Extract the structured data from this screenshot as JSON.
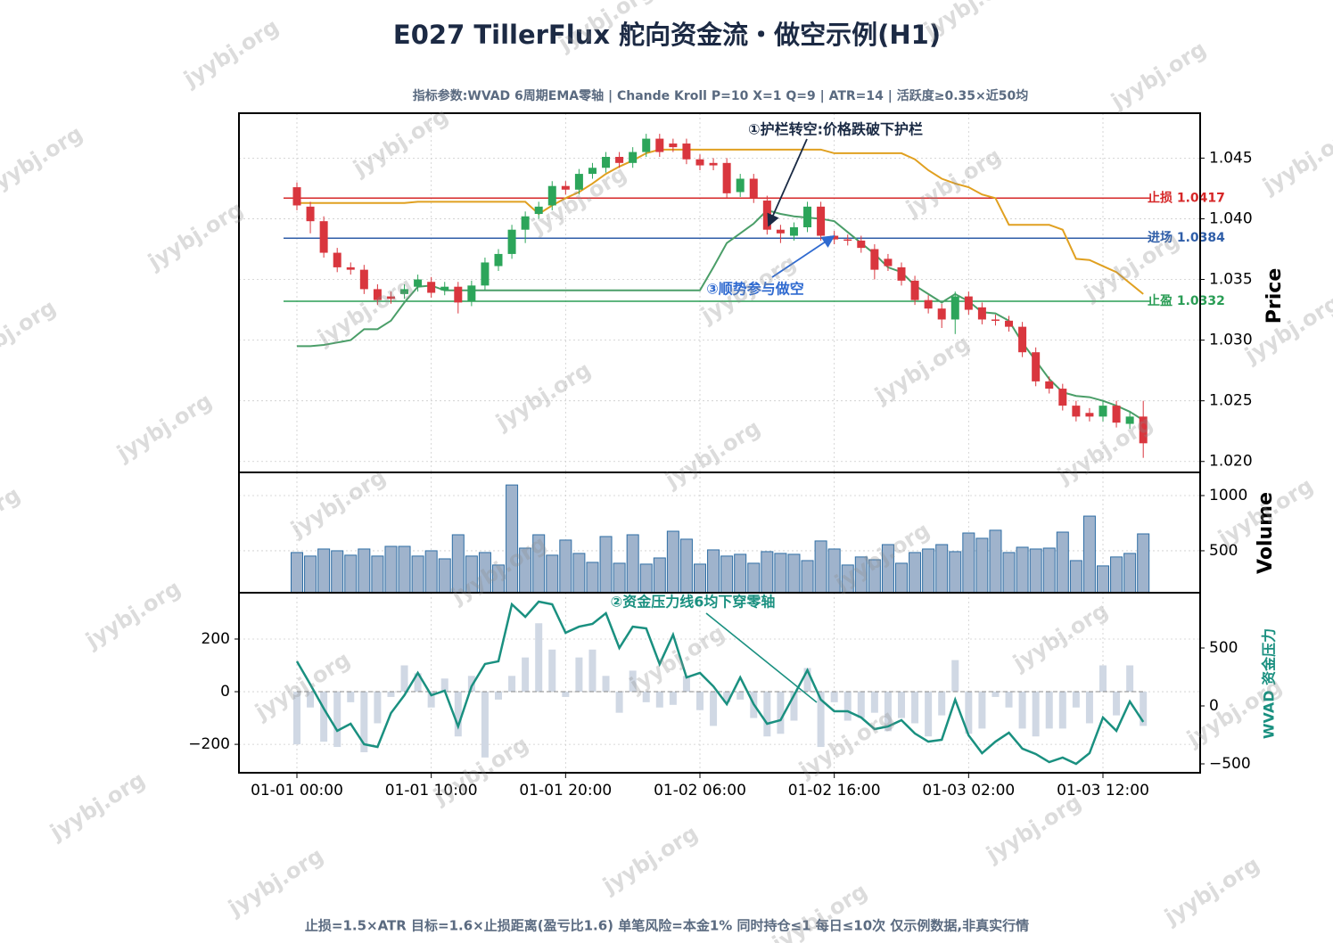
{
  "title": "E027 TillerFlux 舵向资金流・做空示例(H1)",
  "subtitle": "指标参数:WVAD 6周期EMA零轴 | Chande Kroll P=10 X=1 Q=9 | ATR=14 | 活跃度≥0.35×近50均",
  "footer": "止损=1.5×ATR  目标=1.6×止损距离(盈亏比1.6)  单笔风险=本金1%  同时持仓≤1  每日≤10次     仅示例数据,非真实行情",
  "watermark": "jyybj.org",
  "x": [
    "01-01 00:00",
    "01-01 01:00",
    "01-01 02:00",
    "01-01 03:00",
    "01-01 04:00",
    "01-01 05:00",
    "01-01 06:00",
    "01-01 07:00",
    "01-01 08:00",
    "01-01 09:00",
    "01-01 10:00",
    "01-01 11:00",
    "01-01 12:00",
    "01-01 13:00",
    "01-01 14:00",
    "01-01 15:00",
    "01-01 16:00",
    "01-01 17:00",
    "01-01 18:00",
    "01-01 19:00",
    "01-01 20:00",
    "01-01 21:00",
    "01-01 22:00",
    "01-01 23:00",
    "01-02 00:00",
    "01-02 01:00",
    "01-02 02:00",
    "01-02 03:00",
    "01-02 04:00",
    "01-02 05:00",
    "01-02 06:00",
    "01-02 07:00",
    "01-02 08:00",
    "01-02 09:00",
    "01-02 10:00",
    "01-02 11:00",
    "01-02 12:00",
    "01-02 13:00",
    "01-02 14:00",
    "01-02 15:00",
    "01-02 16:00",
    "01-02 17:00",
    "01-02 18:00",
    "01-02 19:00",
    "01-02 20:00",
    "01-02 21:00",
    "01-02 22:00",
    "01-02 23:00",
    "01-03 00:00",
    "01-03 01:00",
    "01-03 02:00",
    "01-03 03:00",
    "01-03 04:00",
    "01-03 05:00",
    "01-03 06:00",
    "01-03 07:00",
    "01-03 08:00",
    "01-03 09:00",
    "01-03 10:00",
    "01-03 11:00",
    "01-03 12:00",
    "01-03 13:00",
    "01-03 14:00",
    "01-03 15:00"
  ],
  "xticks": [
    "01-01 00:00",
    "01-01 10:00",
    "01-01 20:00",
    "01-02 06:00",
    "01-02 16:00",
    "01-03 02:00",
    "01-03 12:00"
  ],
  "grid": true,
  "chart_data": [
    {
      "type": "candlestick",
      "y_label": "Price",
      "up_color": "#2ca55a",
      "down_color": "#d9363e",
      "open": [
        1.0426,
        1.041,
        1.0398,
        1.0372,
        1.036,
        1.0358,
        1.0342,
        1.0336,
        1.0338,
        1.0344,
        1.0348,
        1.0341,
        1.0344,
        1.0332,
        1.0345,
        1.0361,
        1.0371,
        1.0391,
        1.0404,
        1.0411,
        1.0427,
        1.0424,
        1.0437,
        1.0442,
        1.0451,
        1.0446,
        1.0455,
        1.0466,
        1.0462,
        1.0462,
        1.0449,
        1.0446,
        1.0446,
        1.0422,
        1.0433,
        1.0415,
        1.0391,
        1.0386,
        1.0393,
        1.041,
        1.0386,
        1.0383,
        1.0382,
        1.0375,
        1.0367,
        1.036,
        1.0349,
        1.0333,
        1.0326,
        1.0317,
        1.0336,
        1.0327,
        1.0317,
        1.0316,
        1.0311,
        1.029,
        1.0266,
        1.026,
        1.0246,
        1.024,
        1.0237,
        1.0246,
        1.0231,
        1.0237
      ],
      "high": [
        1.043,
        1.0414,
        1.0402,
        1.0376,
        1.0364,
        1.0362,
        1.0346,
        1.034,
        1.0346,
        1.0354,
        1.0352,
        1.0348,
        1.0348,
        1.0349,
        1.0368,
        1.0375,
        1.0395,
        1.0406,
        1.0414,
        1.0431,
        1.0431,
        1.0441,
        1.0446,
        1.0455,
        1.0455,
        1.0459,
        1.047,
        1.047,
        1.0466,
        1.0466,
        1.0453,
        1.045,
        1.045,
        1.0437,
        1.0437,
        1.0419,
        1.0395,
        1.0397,
        1.0414,
        1.0414,
        1.039,
        1.0387,
        1.0386,
        1.0379,
        1.0371,
        1.0364,
        1.0353,
        1.0337,
        1.033,
        1.034,
        1.034,
        1.0331,
        1.0321,
        1.032,
        1.0315,
        1.0294,
        1.027,
        1.0264,
        1.025,
        1.0244,
        1.025,
        1.025,
        1.0241,
        1.025
      ],
      "low": [
        1.0407,
        1.0388,
        1.0368,
        1.0356,
        1.0354,
        1.0338,
        1.0329,
        1.033,
        1.0334,
        1.034,
        1.0335,
        1.0337,
        1.0322,
        1.0328,
        1.0341,
        1.0357,
        1.0367,
        1.038,
        1.04,
        1.0407,
        1.042,
        1.042,
        1.0433,
        1.0438,
        1.0442,
        1.0442,
        1.0451,
        1.0451,
        1.0455,
        1.0445,
        1.044,
        1.044,
        1.0417,
        1.0418,
        1.0413,
        1.0387,
        1.038,
        1.0382,
        1.0389,
        1.0382,
        1.0379,
        1.0378,
        1.0372,
        1.035,
        1.0357,
        1.0345,
        1.0329,
        1.0322,
        1.031,
        1.0305,
        1.0321,
        1.0313,
        1.0312,
        1.0307,
        1.0286,
        1.0262,
        1.0256,
        1.0242,
        1.0233,
        1.0233,
        1.0233,
        1.0228,
        1.0227,
        1.0203
      ],
      "close": [
        1.0411,
        1.0398,
        1.0372,
        1.036,
        1.0358,
        1.0342,
        1.0333,
        1.0334,
        1.0342,
        1.035,
        1.0339,
        1.0344,
        1.0331,
        1.0345,
        1.0364,
        1.0371,
        1.0391,
        1.0402,
        1.041,
        1.0427,
        1.0424,
        1.0437,
        1.0442,
        1.0451,
        1.0446,
        1.0455,
        1.0466,
        1.0455,
        1.0459,
        1.0449,
        1.0444,
        1.0444,
        1.0421,
        1.0433,
        1.0417,
        1.0391,
        1.0388,
        1.0393,
        1.041,
        1.0386,
        1.0383,
        1.0382,
        1.0376,
        1.0358,
        1.0361,
        1.0349,
        1.0333,
        1.0326,
        1.0317,
        1.0336,
        1.0325,
        1.0317,
        1.0316,
        1.0311,
        1.029,
        1.0266,
        1.026,
        1.0246,
        1.0237,
        1.0237,
        1.0246,
        1.0232,
        1.0237,
        1.0215
      ],
      "lines": [
        {
          "color": "#e0a020",
          "values": [
            1.0413,
            1.0413,
            1.0413,
            1.0413,
            1.0413,
            1.0413,
            1.0413,
            1.0413,
            1.0413,
            1.0414,
            1.0414,
            1.0414,
            1.0414,
            1.0414,
            1.0414,
            1.0414,
            1.0414,
            1.0414,
            1.0404,
            1.0411,
            1.0417,
            1.0422,
            1.0429,
            1.0437,
            1.0443,
            1.0448,
            1.0454,
            1.0457,
            1.0457,
            1.0457,
            1.0457,
            1.0457,
            1.0457,
            1.0457,
            1.0457,
            1.0457,
            1.0457,
            1.0457,
            1.0457,
            1.0457,
            1.0454,
            1.0454,
            1.0454,
            1.0454,
            1.0454,
            1.0454,
            1.0449,
            1.044,
            1.0433,
            1.0429,
            1.0426,
            1.042,
            1.0417,
            1.0395,
            1.0395,
            1.0395,
            1.0395,
            1.0391,
            1.0367,
            1.0366,
            1.0361,
            1.0356,
            1.0347,
            1.0338
          ]
        },
        {
          "color": "#4a9e68",
          "values": [
            1.0295,
            1.0295,
            1.0296,
            1.0298,
            1.03,
            1.0309,
            1.0309,
            1.0316,
            1.0331,
            1.0344,
            1.0345,
            1.0341,
            1.0341,
            1.0341,
            1.0341,
            1.0341,
            1.0341,
            1.0341,
            1.0341,
            1.0341,
            1.0341,
            1.0341,
            1.0341,
            1.0341,
            1.0341,
            1.0341,
            1.0341,
            1.0341,
            1.0341,
            1.0341,
            1.0341,
            1.036,
            1.038,
            1.0388,
            1.0396,
            1.0407,
            1.0404,
            1.0402,
            1.0401,
            1.04,
            1.0398,
            1.0389,
            1.038,
            1.0371,
            1.036,
            1.0356,
            1.0345,
            1.0338,
            1.0331,
            1.0338,
            1.0332,
            1.0323,
            1.0322,
            1.0316,
            1.0298,
            1.0283,
            1.0268,
            1.0257,
            1.0254,
            1.0253,
            1.025,
            1.0246,
            1.0241,
            1.0234
          ]
        }
      ],
      "levels": [
        {
          "value": 1.0417,
          "label": "止损 1.0417",
          "color": "#d62728"
        },
        {
          "value": 1.0384,
          "label": "进场 1.0384",
          "color": "#2f5ea8"
        },
        {
          "value": 1.0332,
          "label": "止盈 1.0332",
          "color": "#2a9d55"
        }
      ],
      "annotations": [
        {
          "text": "①护栏转空:价格跌破下护栏",
          "color": "#1a2a44"
        },
        {
          "text": "③顺势参与做空",
          "color": "#2f6ad0"
        }
      ],
      "ylim": [
        1.0191,
        1.0487
      ],
      "yticks": [
        {
          "value": 1.02,
          "label": "1.020"
        },
        1.025,
        {
          "value": 1.03,
          "label": "1.030"
        },
        1.035,
        {
          "value": 1.04,
          "label": "1.040"
        },
        1.045
      ]
    },
    {
      "type": "bar",
      "y_label": "Volume",
      "color": "#9fb3cc",
      "edge_color": "#2f6ea5",
      "values": [
        484,
        452,
        516,
        500,
        460,
        516,
        452,
        540,
        540,
        452,
        500,
        427,
        645,
        452,
        484,
        371,
        1096,
        524,
        645,
        460,
        597,
        476,
        395,
        629,
        387,
        645,
        379,
        435,
        677,
        605,
        379,
        508,
        452,
        468,
        387,
        492,
        476,
        468,
        411,
        589,
        516,
        371,
        444,
        419,
        556,
        387,
        484,
        516,
        556,
        492,
        661,
        613,
        686,
        484,
        532,
        516,
        524,
        669,
        411,
        814,
        363,
        444,
        476,
        653
      ],
      "ylim": [
        120,
        1210
      ],
      "yticks": [
        500,
        1000
      ]
    },
    {
      "type": "wvad",
      "y2_label": "WVAD 资金压力",
      "bar_color": "#d0d8e4",
      "line_color": "#1a9080",
      "bars": [
        -200,
        -60,
        -190,
        -210,
        -40,
        -230,
        -120,
        -20,
        100,
        70,
        -60,
        50,
        -170,
        60,
        -250,
        -30,
        60,
        130,
        260,
        160,
        -20,
        130,
        160,
        60,
        -80,
        80,
        -40,
        -60,
        -50,
        60,
        -70,
        -130,
        -40,
        -30,
        -100,
        -170,
        -160,
        -110,
        90,
        -210,
        -40,
        -110,
        -100,
        -80,
        -150,
        -100,
        -120,
        -170,
        -90,
        120,
        -160,
        -140,
        -20,
        -60,
        -140,
        -170,
        -140,
        -140,
        -60,
        -120,
        100,
        -90,
        100,
        -130
      ],
      "line": [
        385,
        185,
        -23,
        -215,
        -154,
        -331,
        -354,
        -62,
        92,
        285,
        92,
        131,
        -177,
        169,
        362,
        385,
        877,
        769,
        900,
        877,
        631,
        684,
        708,
        800,
        500,
        684,
        669,
        361,
        615,
        246,
        285,
        169,
        15,
        246,
        15,
        -154,
        -123,
        92,
        308,
        54,
        -46,
        -46,
        -100,
        -200,
        -177,
        -123,
        -238,
        -308,
        -292,
        54,
        -254,
        -408,
        -308,
        -231,
        -369,
        -415,
        -485,
        -446,
        -500,
        -408,
        -100,
        -215,
        38,
        -138
      ],
      "annotations": [
        {
          "text": "②资金压力线6均下穿零轴",
          "color": "#1a9080"
        }
      ],
      "ylim": [
        -308,
        376
      ],
      "yticks": [
        {
          "value": -200,
          "label": "−200"
        },
        0,
        200
      ],
      "y2lim": [
        -577,
        977
      ],
      "y2ticks": [
        {
          "value": -500,
          "label": "−500"
        },
        0,
        500
      ]
    }
  ]
}
